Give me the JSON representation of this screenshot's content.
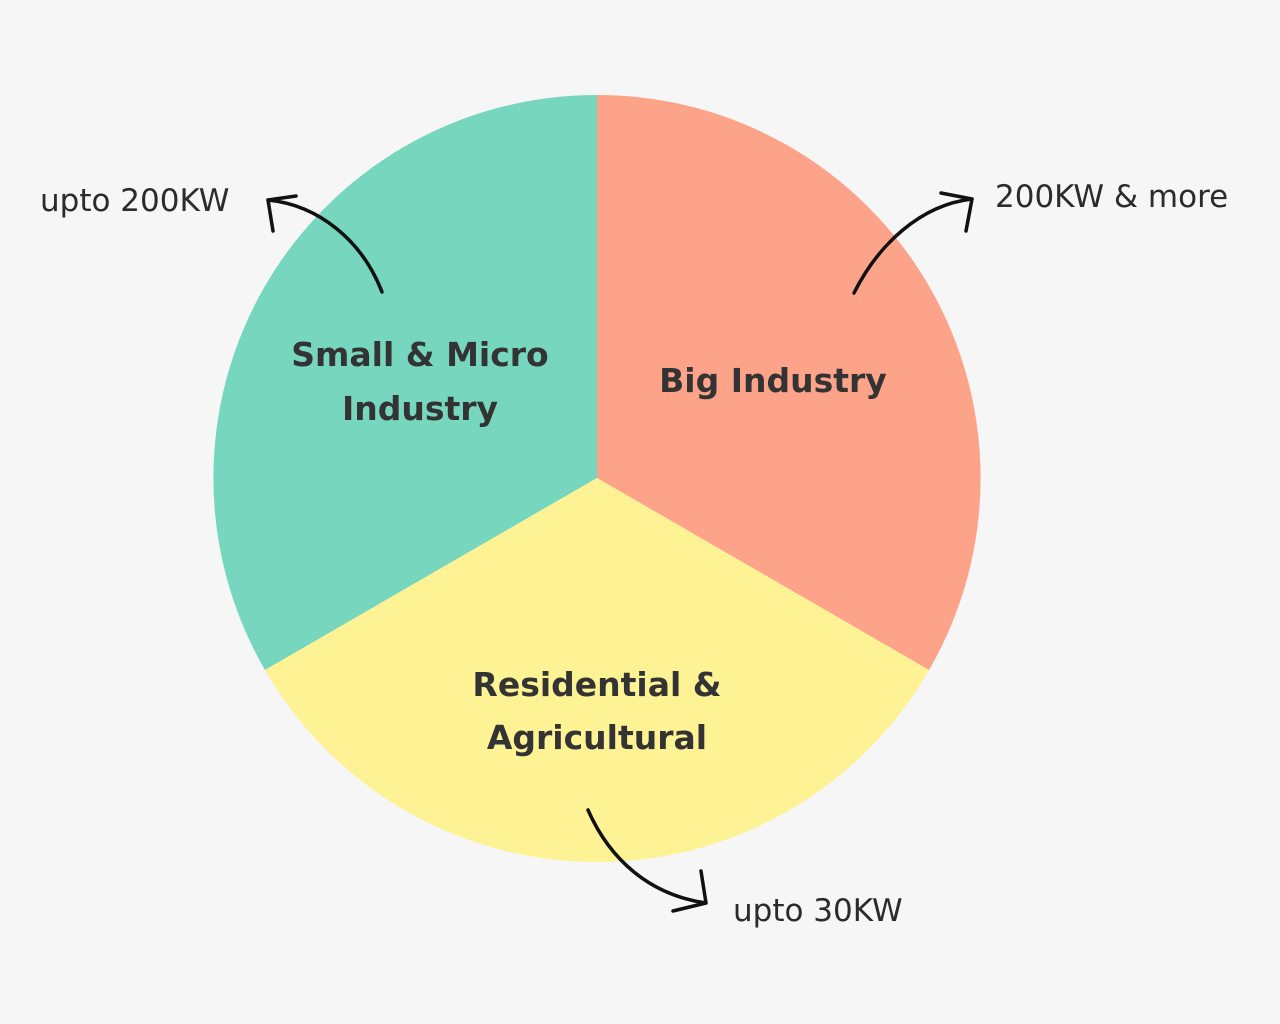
{
  "colors": {
    "background": "#f6f6f6",
    "small_micro": "#76d6be",
    "big_industry": "#fca389",
    "residential": "#fdf294"
  },
  "segments": {
    "small_micro": {
      "line1": "Small & Micro",
      "line2": "Industry"
    },
    "big_industry": {
      "line1": "Big Industry"
    },
    "residential": {
      "line1": "Residential  &",
      "line2": "Agricultural"
    }
  },
  "callouts": {
    "small_micro": "upto 200KW",
    "big_industry": "200KW & more",
    "residential": "upto 30KW"
  }
}
